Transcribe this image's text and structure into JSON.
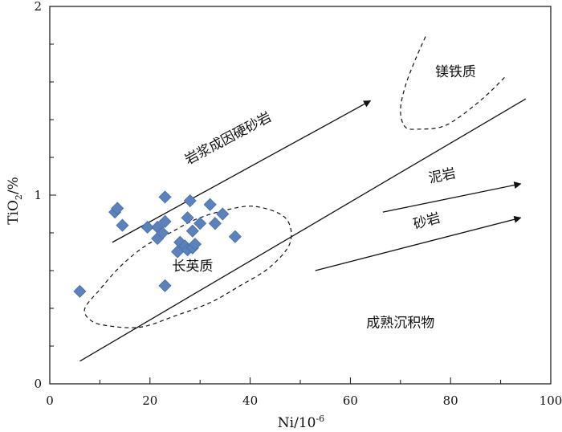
{
  "chart_data": {
    "type": "scatter",
    "xlabel": {
      "text": "Ni/10",
      "sup": "-6"
    },
    "ylabel": {
      "main": "TiO",
      "sub": "2",
      "tail": "/%"
    },
    "xlim": [
      0,
      100
    ],
    "ylim": [
      0,
      2
    ],
    "xticks": [
      0,
      20,
      40,
      60,
      80,
      100
    ],
    "xtick_labels": [
      "0",
      "20",
      "40",
      "60",
      "80",
      "100"
    ],
    "yticks": [
      0,
      1,
      2
    ],
    "ytick_labels": [
      "0",
      "1",
      "2"
    ],
    "yminor_step": 0.2,
    "xminor_step": 10,
    "marker": {
      "shape": "diamond",
      "color": "#5b82bc",
      "edge": "#4a6ea5"
    },
    "points": [
      {
        "x": 6,
        "y": 0.49
      },
      {
        "x": 13,
        "y": 0.91
      },
      {
        "x": 13.5,
        "y": 0.93
      },
      {
        "x": 14.5,
        "y": 0.84
      },
      {
        "x": 19.5,
        "y": 0.83
      },
      {
        "x": 21.5,
        "y": 0.83
      },
      {
        "x": 21.5,
        "y": 0.77
      },
      {
        "x": 22.5,
        "y": 0.8
      },
      {
        "x": 23,
        "y": 0.99
      },
      {
        "x": 23,
        "y": 0.86
      },
      {
        "x": 23,
        "y": 0.52
      },
      {
        "x": 25.5,
        "y": 0.7
      },
      {
        "x": 26,
        "y": 0.75
      },
      {
        "x": 27,
        "y": 0.73
      },
      {
        "x": 27.5,
        "y": 0.88
      },
      {
        "x": 27.5,
        "y": 0.71
      },
      {
        "x": 28,
        "y": 0.97
      },
      {
        "x": 28.5,
        "y": 0.81
      },
      {
        "x": 28.5,
        "y": 0.72
      },
      {
        "x": 29,
        "y": 0.74
      },
      {
        "x": 30,
        "y": 0.85
      },
      {
        "x": 32,
        "y": 0.95
      },
      {
        "x": 33,
        "y": 0.85
      },
      {
        "x": 34.5,
        "y": 0.9
      },
      {
        "x": 37,
        "y": 0.78
      }
    ],
    "lines": [
      {
        "name": "boundary-line",
        "from": [
          6,
          0.12
        ],
        "to": [
          95,
          1.51
        ],
        "arrow": false
      },
      {
        "name": "arrow-hard-sandstone",
        "from": [
          12.5,
          0.75
        ],
        "to": [
          64,
          1.5
        ],
        "arrow": true
      },
      {
        "name": "arrow-mudstone",
        "from": [
          66.5,
          0.91
        ],
        "to": [
          94,
          1.06
        ],
        "arrow": true
      },
      {
        "name": "arrow-sandstone",
        "from": [
          53,
          0.6
        ],
        "to": [
          94,
          0.88
        ],
        "arrow": true
      }
    ],
    "dashed_regions": [
      {
        "name": "felsic-region",
        "closed": true,
        "points": [
          [
            8,
            0.34
          ],
          [
            11,
            0.31
          ],
          [
            18,
            0.3
          ],
          [
            25,
            0.36
          ],
          [
            32,
            0.43
          ],
          [
            38,
            0.52
          ],
          [
            44,
            0.62
          ],
          [
            48,
            0.75
          ],
          [
            47,
            0.88
          ],
          [
            41,
            0.94
          ],
          [
            35,
            0.92
          ],
          [
            29,
            0.87
          ],
          [
            24,
            0.8
          ],
          [
            19,
            0.73
          ],
          [
            14,
            0.62
          ],
          [
            10,
            0.5
          ],
          [
            7,
            0.4
          ]
        ]
      },
      {
        "name": "mafic-region",
        "closed": false,
        "points": [
          [
            75,
            1.84
          ],
          [
            73,
            1.72
          ],
          [
            71,
            1.58
          ],
          [
            70,
            1.45
          ],
          [
            71,
            1.36
          ],
          [
            74,
            1.35
          ],
          [
            78,
            1.36
          ],
          [
            81,
            1.4
          ],
          [
            85,
            1.48
          ],
          [
            88,
            1.55
          ],
          [
            91,
            1.63
          ]
        ]
      }
    ],
    "region_labels": [
      {
        "name": "label-hard-sandstone",
        "text": "岩浆成因硬砂岩",
        "at": [
          36,
          1.28
        ],
        "rotate": -28
      },
      {
        "name": "label-mafic",
        "text": "镁铁质",
        "at": [
          81,
          1.63
        ],
        "rotate": 0
      },
      {
        "name": "label-mudstone",
        "text": "泥岩",
        "at": [
          78.5,
          1.08
        ],
        "rotate": -12
      },
      {
        "name": "label-sandstone",
        "text": "砂岩",
        "at": [
          75.5,
          0.84
        ],
        "rotate": -16
      },
      {
        "name": "label-felsic",
        "text": "长英质",
        "at": [
          28.5,
          0.6
        ],
        "rotate": 0
      },
      {
        "name": "label-mature",
        "text": "成熟沉积物",
        "at": [
          70,
          0.3
        ],
        "rotate": 0
      }
    ]
  }
}
